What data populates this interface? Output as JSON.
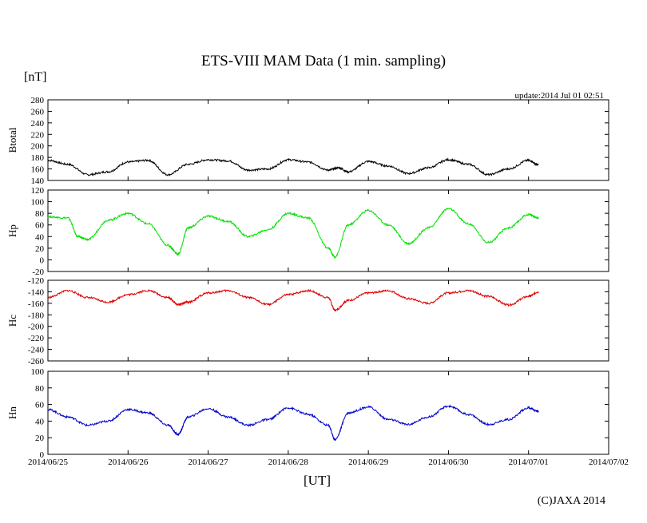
{
  "title": "ETS-VIII MAM Data (1 min. sampling)",
  "y_unit": "[nT]",
  "update_text": "update:2014 Jul 01 02:51",
  "x_label": "[UT]",
  "copyright": "(C)JAXA 2014",
  "chart_data": {
    "type": "line",
    "x_ticks": [
      "2014/06/25",
      "2014/06/26",
      "2014/06/27",
      "2014/06/28",
      "2014/06/29",
      "2014/06/30",
      "2014/07/01",
      "2014/07/02"
    ],
    "x_range": [
      "2014/06/25 00:00",
      "2014/07/02 00:00"
    ],
    "panels": [
      {
        "ylabel": "Btotal",
        "ylim": [
          140,
          280
        ],
        "yticks": [
          140,
          160,
          180,
          200,
          220,
          240,
          260,
          280
        ],
        "color": "#000000",
        "x": [
          "06/25 00:00",
          "06/25 06:00",
          "06/25 12:00",
          "06/25 18:00",
          "06/26 00:00",
          "06/26 06:00",
          "06/26 12:00",
          "06/26 18:00",
          "06/27 00:00",
          "06/27 06:00",
          "06/27 12:00",
          "06/27 18:00",
          "06/28 00:00",
          "06/28 06:00",
          "06/28 12:00",
          "06/28 15:00",
          "06/28 18:00",
          "06/29 00:00",
          "06/29 06:00",
          "06/29 12:00",
          "06/29 18:00",
          "06/30 00:00",
          "06/30 06:00",
          "06/30 12:00",
          "06/30 18:00",
          "07/01 00:00",
          "07/01 03:00"
        ],
        "y": [
          175,
          168,
          150,
          155,
          172,
          175,
          150,
          168,
          176,
          174,
          158,
          160,
          176,
          172,
          158,
          162,
          155,
          173,
          165,
          152,
          162,
          176,
          168,
          150,
          160,
          175,
          167
        ]
      },
      {
        "ylabel": "Hp",
        "ylim": [
          -20,
          120
        ],
        "yticks": [
          -20,
          0,
          20,
          40,
          60,
          80,
          100,
          120
        ],
        "color": "#00e000",
        "x": [
          "06/25 00:00",
          "06/25 06:00",
          "06/25 09:00",
          "06/25 12:00",
          "06/25 18:00",
          "06/26 00:00",
          "06/26 06:00",
          "06/26 12:00",
          "06/26 15:00",
          "06/26 18:00",
          "06/27 00:00",
          "06/27 06:00",
          "06/27 12:00",
          "06/27 18:00",
          "06/28 00:00",
          "06/28 06:00",
          "06/28 12:00",
          "06/28 14:00",
          "06/28 18:00",
          "06/29 00:00",
          "06/29 06:00",
          "06/29 12:00",
          "06/29 18:00",
          "06/30 00:00",
          "06/30 06:00",
          "06/30 12:00",
          "06/30 18:00",
          "07/01 00:00",
          "07/01 03:00"
        ],
        "y": [
          74,
          72,
          40,
          35,
          68,
          80,
          62,
          25,
          10,
          55,
          75,
          66,
          40,
          52,
          80,
          72,
          20,
          5,
          60,
          85,
          60,
          28,
          55,
          88,
          62,
          30,
          55,
          78,
          72
        ]
      },
      {
        "ylabel": "Hc",
        "ylim": [
          -260,
          -120
        ],
        "yticks": [
          -260,
          -240,
          -220,
          -200,
          -180,
          -160,
          -140,
          -120
        ],
        "color": "#dd0000",
        "x": [
          "06/25 00:00",
          "06/25 06:00",
          "06/25 12:00",
          "06/25 18:00",
          "06/26 00:00",
          "06/26 06:00",
          "06/26 12:00",
          "06/26 15:00",
          "06/26 18:00",
          "06/27 00:00",
          "06/27 06:00",
          "06/27 12:00",
          "06/27 18:00",
          "06/28 00:00",
          "06/28 06:00",
          "06/28 12:00",
          "06/28 14:00",
          "06/28 18:00",
          "06/29 00:00",
          "06/29 06:00",
          "06/29 12:00",
          "06/29 18:00",
          "06/30 00:00",
          "06/30 06:00",
          "06/30 12:00",
          "06/30 18:00",
          "07/01 00:00",
          "07/01 03:00"
        ],
        "y": [
          -150,
          -138,
          -150,
          -158,
          -145,
          -138,
          -150,
          -162,
          -158,
          -142,
          -138,
          -150,
          -162,
          -145,
          -138,
          -150,
          -172,
          -155,
          -142,
          -138,
          -152,
          -160,
          -142,
          -138,
          -148,
          -163,
          -148,
          -140
        ]
      },
      {
        "ylabel": "Hn",
        "ylim": [
          0,
          100
        ],
        "yticks": [
          0,
          20,
          40,
          60,
          80,
          100
        ],
        "color": "#0000cc",
        "x": [
          "06/25 00:00",
          "06/25 06:00",
          "06/25 12:00",
          "06/25 18:00",
          "06/26 00:00",
          "06/26 06:00",
          "06/26 12:00",
          "06/26 15:00",
          "06/26 18:00",
          "06/27 00:00",
          "06/27 06:00",
          "06/27 12:00",
          "06/27 18:00",
          "06/28 00:00",
          "06/28 06:00",
          "06/28 12:00",
          "06/28 14:00",
          "06/28 18:00",
          "06/29 00:00",
          "06/29 06:00",
          "06/29 12:00",
          "06/29 18:00",
          "06/30 00:00",
          "06/30 06:00",
          "06/30 12:00",
          "06/30 18:00",
          "07/01 00:00",
          "07/01 03:00"
        ],
        "y": [
          54,
          45,
          35,
          40,
          54,
          50,
          35,
          24,
          45,
          55,
          45,
          35,
          42,
          56,
          48,
          35,
          18,
          50,
          57,
          42,
          36,
          45,
          58,
          48,
          36,
          42,
          56,
          52
        ]
      }
    ]
  }
}
